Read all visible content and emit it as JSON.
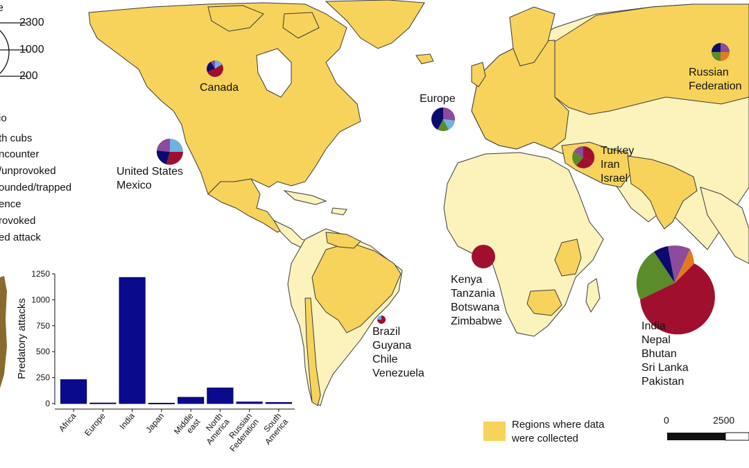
{
  "size_legend": {
    "title_fragment": "e",
    "values": [
      "2300",
      "1000",
      "200"
    ]
  },
  "category_legend": {
    "title_fragment": "io",
    "items": [
      {
        "label": "th cubs",
        "color": "#0b0b6e"
      },
      {
        "label": "ncounter",
        "color": "#6fb3e0"
      },
      {
        "label": "/unprovoked",
        "color": "#5b8c2a"
      },
      {
        "label": "ounded/trapped",
        "color": "#e07b1f"
      },
      {
        "label": "ence",
        "color": "#d6a6d9"
      },
      {
        "label": "rovoked",
        "color": "#8c4b9c"
      },
      {
        "label": "ed attack",
        "color": "#a0102e"
      }
    ]
  },
  "regions": [
    {
      "id": "canada",
      "lines": [
        "Canada"
      ]
    },
    {
      "id": "us-mexico",
      "lines": [
        "United States",
        "Mexico"
      ]
    },
    {
      "id": "europe",
      "lines": [
        "Europe"
      ]
    },
    {
      "id": "russia",
      "lines": [
        "Russian",
        "Federation"
      ]
    },
    {
      "id": "middle-east",
      "lines": [
        "Turkey",
        "Iran",
        "Israel"
      ]
    },
    {
      "id": "africa",
      "lines": [
        "Kenya",
        "Tanzania",
        "Botswana",
        "Zimbabwe"
      ]
    },
    {
      "id": "south-america",
      "lines": [
        "Brazil",
        "Guyana",
        "Chile",
        "Venezuela"
      ]
    },
    {
      "id": "south-asia",
      "lines": [
        "India",
        "Nepal",
        "Bhutan",
        "Sri Lanka",
        "Pakistan"
      ]
    }
  ],
  "data_legend": {
    "text_line1": "Regions where data",
    "text_line2": "were collected",
    "color": "#f7d35c"
  },
  "scale_bar": {
    "start": "0",
    "mid": "2500"
  },
  "colors": {
    "collected": "#f7d35c",
    "not_collected": "#fcf2bc",
    "ocean": "#ffffff",
    "border": "#3a3a3a"
  },
  "chart_data": {
    "type": "bar",
    "categories": [
      "Africa",
      "Europe",
      "India",
      "Japan",
      "Middle east",
      "North America",
      "Russian Federation",
      "South America"
    ],
    "values": [
      230,
      5,
      1215,
      3,
      60,
      150,
      15,
      10
    ],
    "ylabel": "Predatory attacks",
    "yticks": [
      0,
      250,
      500,
      750,
      1000,
      1250
    ],
    "ylim": [
      0,
      1250
    ],
    "bar_color": "#0a0a8c"
  }
}
